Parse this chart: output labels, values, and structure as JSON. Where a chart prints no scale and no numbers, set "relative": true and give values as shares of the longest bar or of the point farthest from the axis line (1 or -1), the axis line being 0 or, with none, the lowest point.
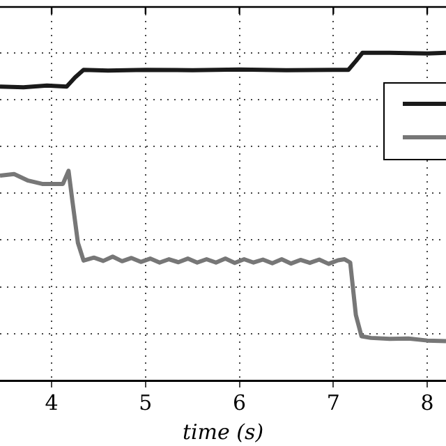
{
  "chart_data": {
    "type": "line",
    "relative": true,
    "xlabel": "time (s)",
    "xlim": [
      3.45,
      8.2
    ],
    "xticks": [
      4,
      5,
      6,
      7,
      8
    ],
    "grid": true,
    "marker": "none",
    "line_style": "solid",
    "series": [
      {
        "color": "#1a1a1a",
        "x": [
          3.45,
          3.7,
          3.95,
          4.16,
          4.25,
          4.34,
          4.6,
          5.0,
          5.5,
          6.0,
          6.5,
          7.0,
          7.16,
          7.24,
          7.31,
          7.6,
          8.0,
          8.2
        ],
        "values": [
          0.897,
          0.895,
          0.9,
          0.897,
          0.925,
          0.948,
          0.946,
          0.948,
          0.947,
          0.949,
          0.947,
          0.948,
          0.948,
          0.975,
          1.0,
          1.0,
          0.998,
          1.0
        ]
      },
      {
        "color": "#777777",
        "x": [
          3.45,
          3.6,
          3.75,
          3.9,
          4.05,
          4.12,
          4.18,
          4.22,
          4.28,
          4.34,
          4.45,
          4.55,
          4.65,
          4.75,
          4.85,
          4.95,
          5.05,
          5.15,
          5.25,
          5.35,
          5.45,
          5.55,
          5.65,
          5.75,
          5.85,
          5.95,
          6.05,
          6.15,
          6.25,
          6.35,
          6.45,
          6.55,
          6.65,
          6.75,
          6.85,
          6.95,
          7.05,
          7.12,
          7.18,
          7.24,
          7.3,
          7.4,
          7.6,
          7.8,
          8.0,
          8.2
        ],
        "values": [
          0.625,
          0.63,
          0.61,
          0.6,
          0.6,
          0.6,
          0.64,
          0.55,
          0.42,
          0.366,
          0.375,
          0.365,
          0.378,
          0.364,
          0.374,
          0.362,
          0.372,
          0.36,
          0.37,
          0.361,
          0.372,
          0.36,
          0.37,
          0.36,
          0.372,
          0.359,
          0.37,
          0.36,
          0.369,
          0.358,
          0.37,
          0.357,
          0.368,
          0.359,
          0.369,
          0.356,
          0.367,
          0.37,
          0.36,
          0.2,
          0.135,
          0.13,
          0.127,
          0.128,
          0.122,
          0.12
        ]
      }
    ]
  }
}
